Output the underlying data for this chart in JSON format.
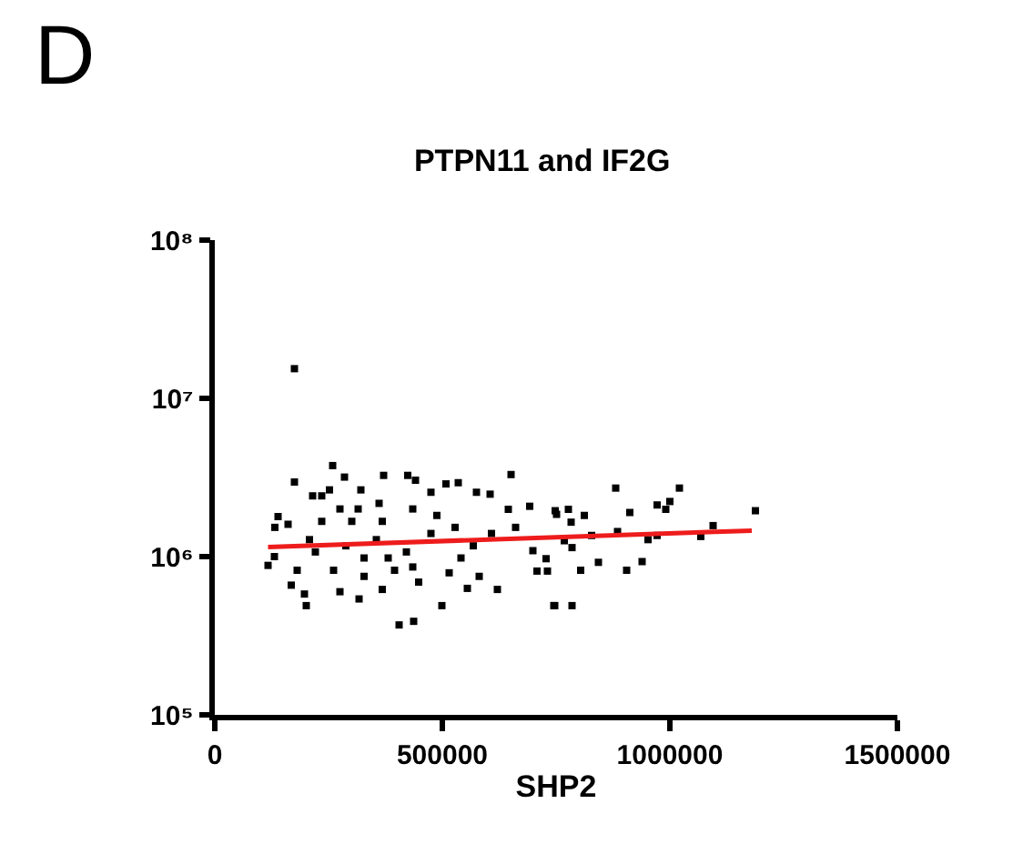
{
  "chart_data": {
    "type": "scatter",
    "title": "PTPN11 and IF2G",
    "xlabel": "SHP2",
    "annotations": [
      "D"
    ],
    "log": "y",
    "grid": false,
    "xlim": [
      0,
      1500000
    ],
    "xticks": [
      0,
      500000,
      1000000,
      1500000
    ],
    "ylim": [
      100000,
      100000000
    ],
    "yticks": [
      {
        "value": 100000,
        "label": "10⁵"
      },
      {
        "value": 1000000,
        "label": "10⁶"
      },
      {
        "value": 10000000,
        "label": "10⁷"
      },
      {
        "value": 100000000,
        "label": "10⁸"
      }
    ],
    "series": [
      {
        "color": "#000000",
        "marker": "square",
        "x": [
          175000,
          175000,
          259000,
          285000,
          371000,
          424000,
          651000,
          321000,
          117000,
          131000,
          139000,
          132000,
          161000,
          201000,
          197000,
          168000,
          405000,
          437000,
          499000,
          745000,
          708000,
          728000,
          699000,
          751000,
          692000,
          645000,
          575000,
          605000,
          535000,
          508000,
          475000,
          441000,
          215000,
          235000,
          252000,
          361000,
          275000,
          315000,
          221000,
          288000,
          355000,
          381000,
          421000,
          475000,
          528000,
          568000,
          608000,
          661000,
          261000,
          328000,
          395000,
          448000,
          515000,
          581000,
          275000,
          317000,
          368000,
          555000,
          621000,
          235000,
          301000,
          368000,
          435000,
          488000,
          328000,
          435000,
          541000,
          181000,
          208000,
          881000,
          1021000,
          972000,
          991000,
          1000000,
          912000,
          1188000,
          748000,
          777000,
          812000,
          783000,
          1095000,
          1068000,
          952000,
          972000,
          885000,
          828000,
          768000,
          785000,
          843000,
          939000,
          905000,
          804000,
          731000,
          747000,
          785000
        ],
        "values": [
          15400000,
          2960000,
          3760000,
          3180000,
          3260000,
          3260000,
          3300000,
          2640000,
          880000,
          1000000,
          1790000,
          1530000,
          1600000,
          490000,
          580000,
          660000,
          370000,
          390000,
          490000,
          490000,
          810000,
          970000,
          1090000,
          1850000,
          2080000,
          1990000,
          2550000,
          2480000,
          2930000,
          2880000,
          2550000,
          3040000,
          2420000,
          2420000,
          2640000,
          2170000,
          2000000,
          2000000,
          1070000,
          1170000,
          1280000,
          980000,
          1070000,
          1400000,
          1530000,
          1170000,
          1400000,
          1530000,
          820000,
          750000,
          820000,
          690000,
          790000,
          750000,
          600000,
          540000,
          620000,
          630000,
          620000,
          1670000,
          1670000,
          1670000,
          2000000,
          1820000,
          980000,
          860000,
          980000,
          820000,
          1280000,
          2710000,
          2710000,
          2120000,
          1990000,
          2230000,
          1900000,
          1950000,
          1950000,
          1990000,
          1820000,
          1650000,
          1570000,
          1340000,
          1280000,
          1360000,
          1440000,
          1360000,
          1260000,
          1140000,
          920000,
          930000,
          820000,
          820000,
          810000,
          490000,
          490000
        ]
      },
      {
        "type": "line",
        "color": "#ee1c1c",
        "x": [
          117000,
          1180000
        ],
        "values": [
          1150000,
          1460000
        ]
      }
    ]
  }
}
